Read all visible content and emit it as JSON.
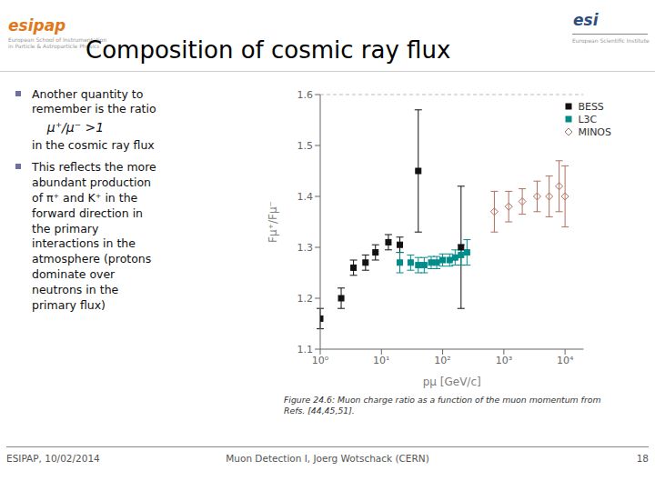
{
  "chart_data": {
    "type": "scatter",
    "title": "Composition of cosmic ray flux",
    "x_label": "pμ [GeV/c]",
    "y_label": "Fμ⁺/Fμ⁻",
    "log": "x",
    "xlim": [
      1.0,
      20000.0
    ],
    "xticks": [
      {
        "value": 1,
        "label": "10⁰"
      },
      {
        "value": 10,
        "label": "10¹"
      },
      {
        "value": 100,
        "label": "10²"
      },
      {
        "value": 1000,
        "label": "10³"
      },
      {
        "value": 10000,
        "label": "10⁴"
      }
    ],
    "ylim": [
      1.1,
      1.6
    ],
    "yticks": [
      1.1,
      1.2,
      1.3,
      1.4,
      1.5,
      1.6
    ],
    "grid": false,
    "legend": "upper right",
    "reference_lines": [
      1.6
    ],
    "series": [
      {
        "name": "BESS",
        "color": "#111111",
        "marker": "square",
        "x": [
          1.0,
          2.2,
          3.5,
          5.5,
          8.0,
          13.0,
          20.0,
          40.0,
          200.0
        ],
        "values": [
          1.16,
          1.2,
          1.26,
          1.27,
          1.29,
          1.31,
          1.305,
          1.45,
          1.3
        ],
        "errors": [
          0.02,
          0.02,
          0.015,
          0.015,
          0.015,
          0.015,
          0.015,
          0.12,
          0.12
        ]
      },
      {
        "name": "L3C",
        "color": "#008b8b",
        "marker": "square",
        "x": [
          20.0,
          30.0,
          40.0,
          50.0,
          65.0,
          80.0,
          100.0,
          130.0,
          160.0,
          200.0,
          250.0
        ],
        "values": [
          1.27,
          1.27,
          1.265,
          1.265,
          1.27,
          1.27,
          1.275,
          1.275,
          1.28,
          1.285,
          1.29
        ],
        "errors": [
          0.02,
          0.015,
          0.015,
          0.015,
          0.012,
          0.012,
          0.012,
          0.012,
          0.015,
          0.02,
          0.025
        ]
      },
      {
        "name": "MINOS",
        "color": "#b07060",
        "marker": "open_diamond",
        "x": [
          700.0,
          1200.0,
          2000.0,
          3500.0,
          5500.0,
          8000.0,
          10000.0
        ],
        "values": [
          1.37,
          1.38,
          1.39,
          1.4,
          1.4,
          1.42,
          1.4
        ],
        "errors": [
          0.04,
          0.03,
          0.025,
          0.03,
          0.04,
          0.05,
          0.06
        ]
      }
    ],
    "annotations": [
      "esipap",
      "European School of Instrumentation\nin Particle & Astroparticle Physics",
      "esi",
      "European Scientific Institute",
      "Another quantity to\nremember is the ratio",
      "μ⁺/μ⁻ >1",
      "in the cosmic ray flux",
      "This reflects the more\nabundant production\nof π⁺ and K⁺ in the\nforward direction in\nthe primary\ninteractions in the\natmosphere (protons\ndominate over\nneutrons in the\nprimary flux)",
      "ESIPAP, 10/02/2014",
      "Muon Detection I, Joerg Wotschack (CERN)",
      "18",
      "Figure 24.6: Muon charge ratio as a function of the muon momentum from\nRefs. [44,45,51]."
    ]
  }
}
